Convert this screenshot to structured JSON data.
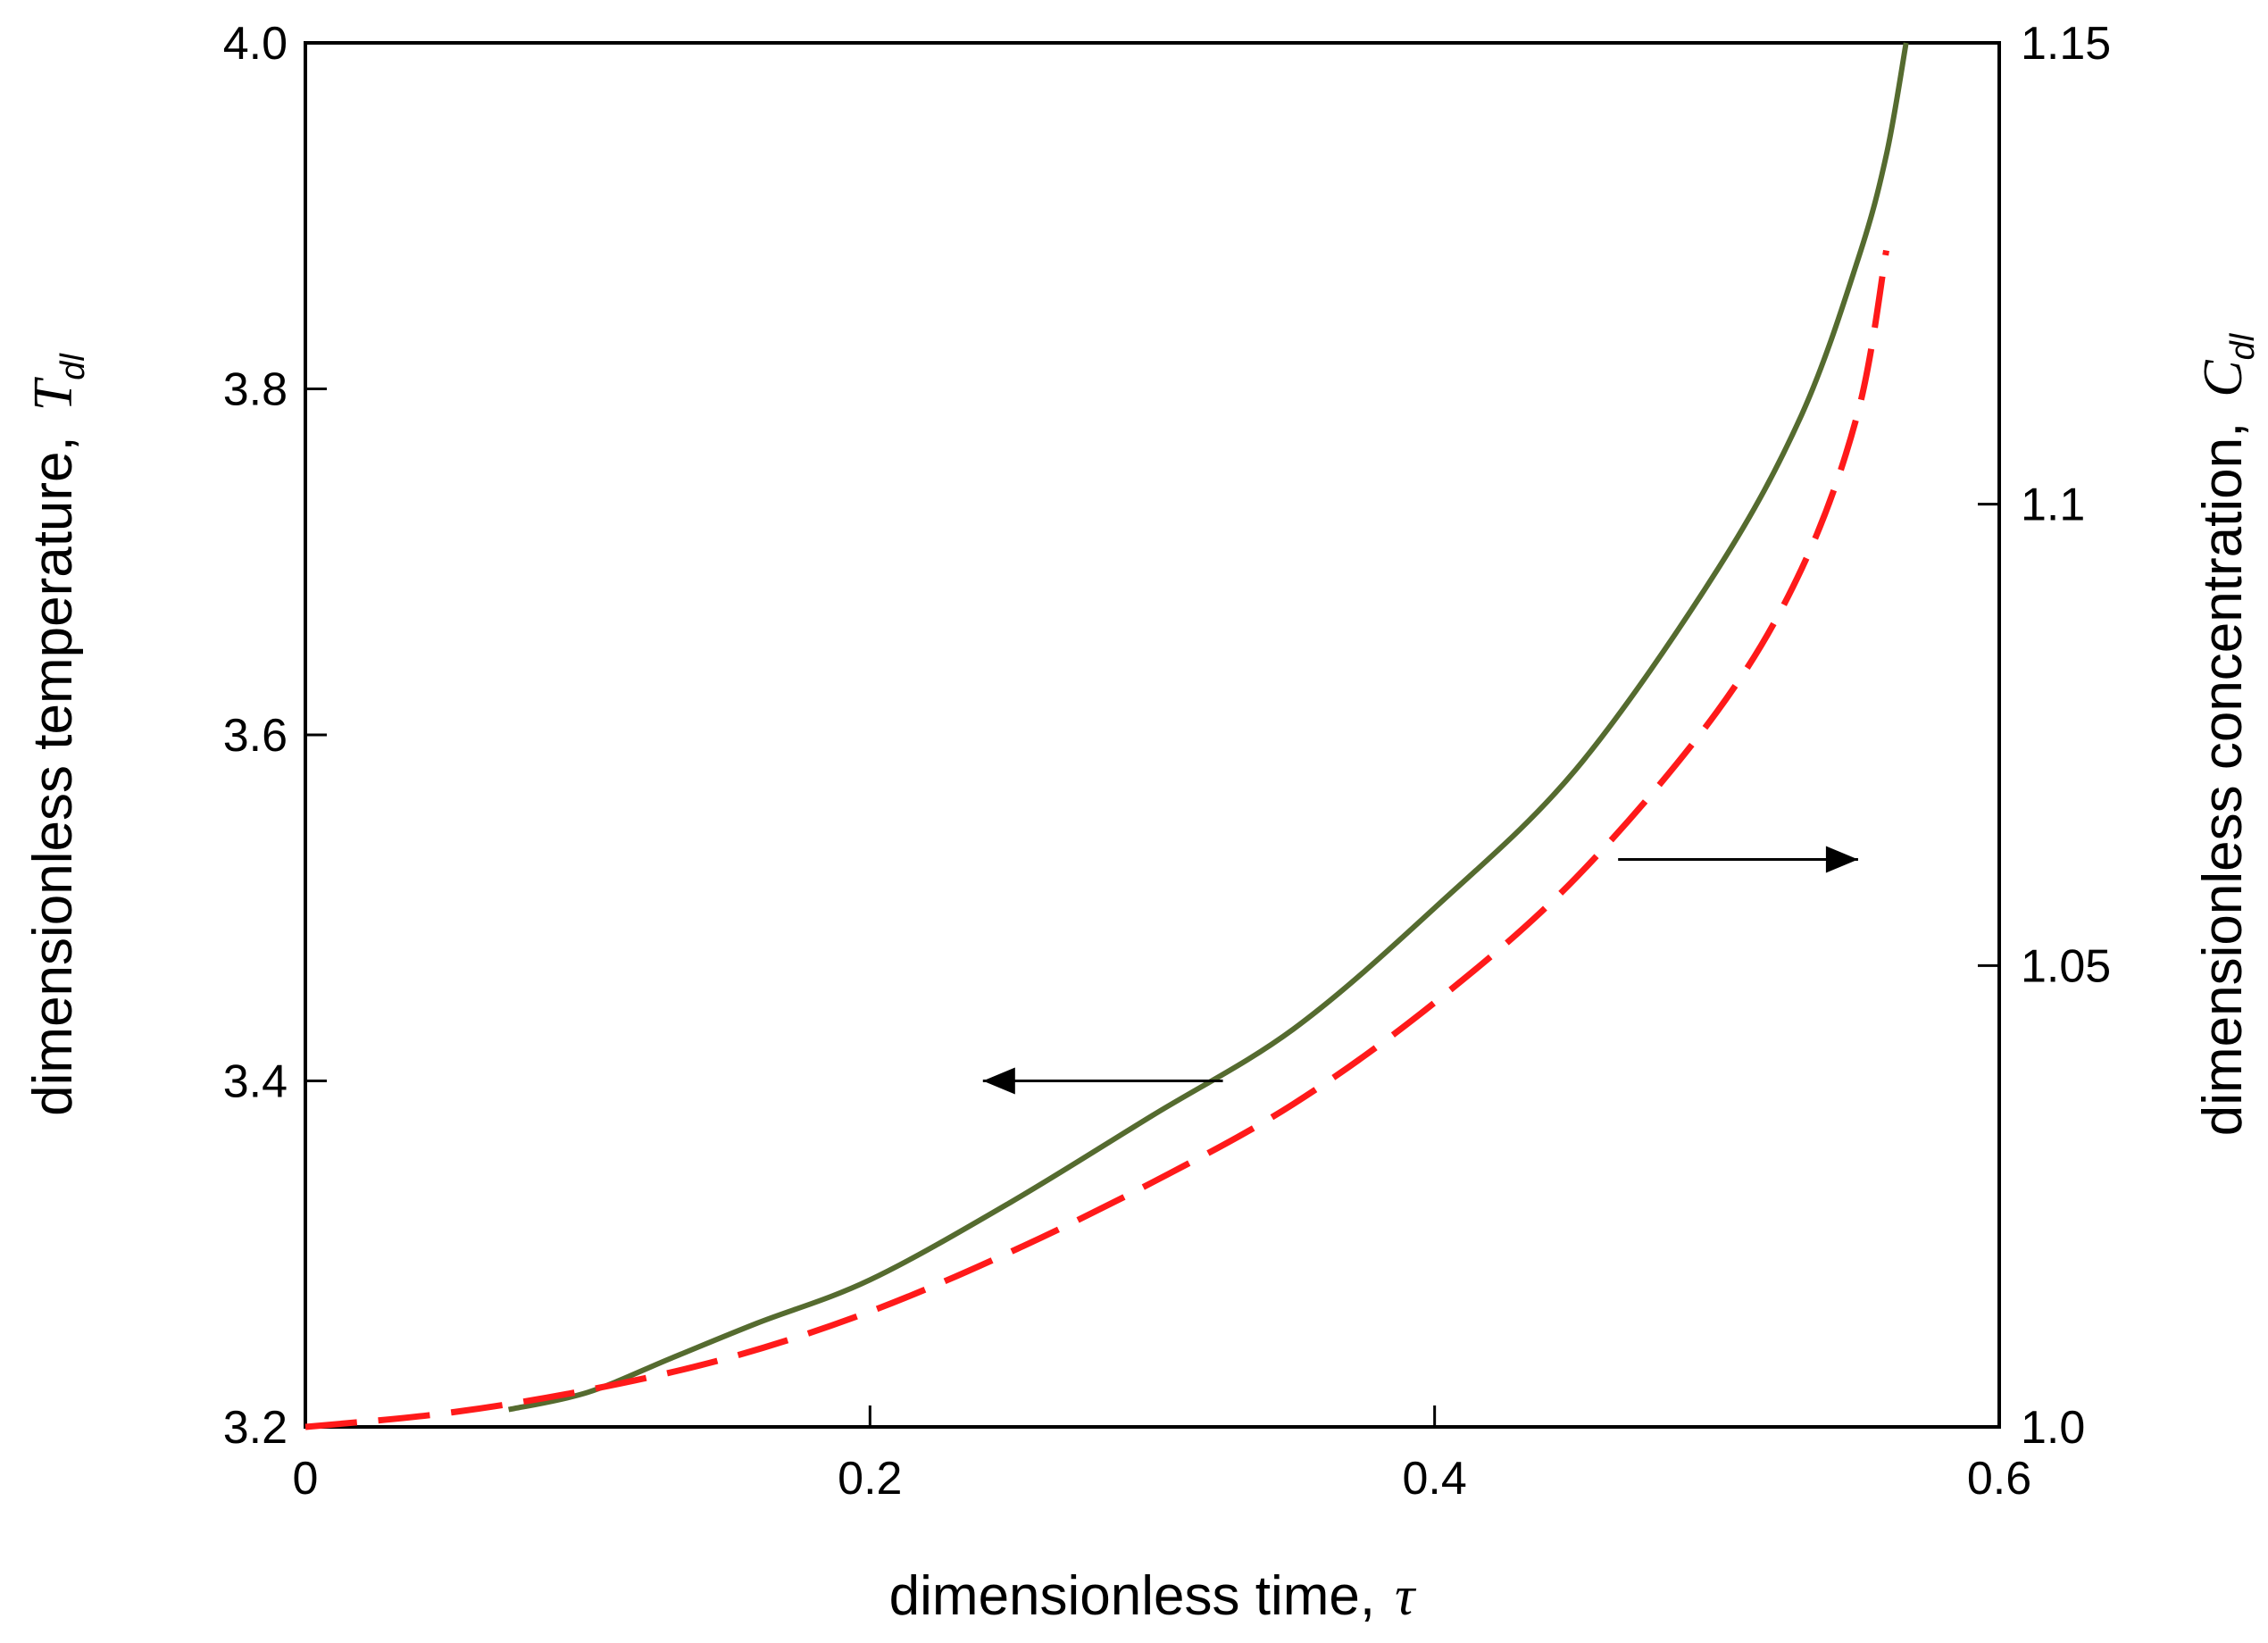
{
  "chart_data": {
    "type": "line",
    "xlabel": "dimensionless time,",
    "xlabel_symbol": "τ",
    "ylabel_left": "dimensionless temperature,",
    "ylabel_left_symbol": "T",
    "ylabel_left_sub": "dl",
    "ylabel_right": "dimensionless concentration,",
    "ylabel_right_symbol": "C",
    "ylabel_right_sub": "dl",
    "xlim": [
      0,
      0.6
    ],
    "ylim_left": [
      3.2,
      4.0
    ],
    "ylim_right": [
      1.0,
      1.15
    ],
    "x_ticks": [
      "0",
      "0.2",
      "0.4",
      "0.6"
    ],
    "y_left_ticks": [
      "3.2",
      "3.4",
      "3.6",
      "3.8",
      "4.0"
    ],
    "y_right_ticks": [
      "1.0",
      "1.05",
      "1.1",
      "1.15"
    ],
    "grid": false,
    "series": [
      {
        "axis": "left",
        "style": "solid",
        "color": "#556b2f",
        "x": [
          0.072,
          0.1,
          0.13,
          0.16,
          0.2,
          0.25,
          0.3,
          0.35,
          0.4,
          0.45,
          0.5,
          0.53,
          0.55,
          0.56,
          0.567
        ],
        "y": [
          3.21,
          3.22,
          3.24,
          3.26,
          3.285,
          3.33,
          3.38,
          3.43,
          3.5,
          3.58,
          3.695,
          3.785,
          3.875,
          3.935,
          4.0
        ]
      },
      {
        "axis": "right",
        "style": "dashed",
        "color": "#ff1a1a",
        "x": [
          0.0,
          0.05,
          0.1,
          0.15,
          0.2,
          0.25,
          0.3,
          0.35,
          0.4,
          0.45,
          0.5,
          0.53,
          0.55,
          0.56
        ],
        "y": [
          1.0,
          1.0015,
          1.004,
          1.0075,
          1.0125,
          1.019,
          1.0265,
          1.035,
          1.046,
          1.0595,
          1.0775,
          1.093,
          1.11,
          1.1275
        ]
      }
    ],
    "annotations": [
      {
        "type": "arrow",
        "direction": "left",
        "points_to": "left-axis",
        "x_from": 0.325,
        "x_to": 0.24,
        "y_left": 3.4
      },
      {
        "type": "arrow",
        "direction": "right",
        "points_to": "right-axis",
        "x_from": 0.465,
        "x_to": 0.55,
        "y_right": 1.0615
      }
    ]
  }
}
